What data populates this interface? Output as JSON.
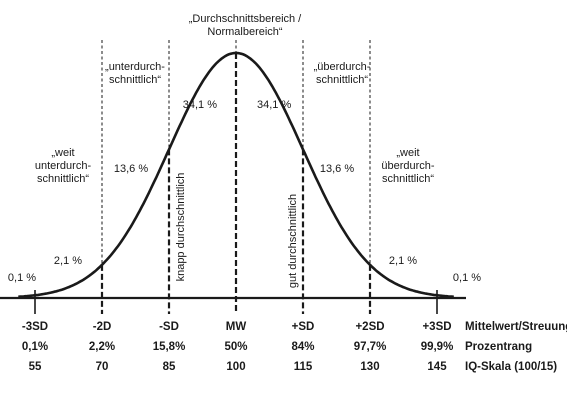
{
  "chart_data": {
    "type": "line",
    "title": "",
    "curve": "normal-distribution",
    "boundaries": [
      "-3SD",
      "-2D",
      "-SD",
      "MW",
      "+SD",
      "+2SD",
      "+3SD"
    ],
    "segment_percentages": [
      "0,1 %",
      "2,1 %",
      "13,6 %",
      "34,1 %",
      "34,1 %",
      "13,6 %",
      "2,1 %",
      "0,1 %"
    ],
    "region_labels": {
      "center": [
        "„Durchschnittsbereich /",
        "Normalbereich“"
      ],
      "below": [
        "„unterdurch-",
        "schnittlich“"
      ],
      "above": [
        "„überdurch-",
        "schnittlich“"
      ],
      "far_below": [
        "„weit",
        "unterdurch-",
        "schnittlich“"
      ],
      "far_above": [
        "„weit",
        "überdurch-",
        "schnittlich“"
      ]
    },
    "vertical_labels": {
      "left": "knapp durchschnittlich",
      "right": "gut durchschnittlich"
    },
    "table": {
      "row_labels": [
        "Mittelwert/Streuung",
        "Prozentrang",
        "IQ-Skala (100/15)"
      ],
      "sd": [
        "-3SD",
        "-2D",
        "-SD",
        "MW",
        "+SD",
        "+2SD",
        "+3SD"
      ],
      "percentile": [
        "0,1%",
        "2,2%",
        "15,8%",
        "50%",
        "84%",
        "97,7%",
        "99,9%"
      ],
      "iq": [
        "55",
        "70",
        "85",
        "100",
        "115",
        "130",
        "145"
      ]
    }
  }
}
